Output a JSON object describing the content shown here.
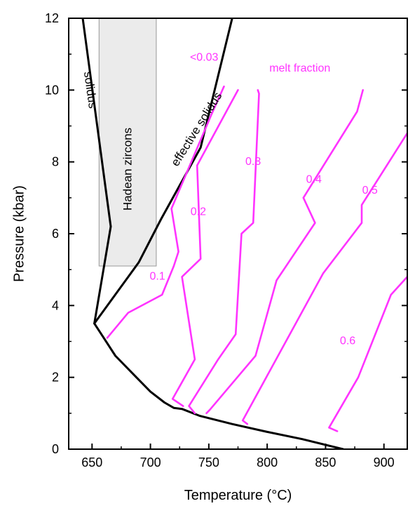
{
  "chart_data": {
    "type": "line",
    "xlabel": "Temperature (°C)",
    "ylabel": "Pressure (kbar)",
    "xlim": [
      630,
      920
    ],
    "ylim": [
      0,
      12
    ],
    "x_ticks": [
      "650",
      "700",
      "750",
      "800",
      "850",
      "900"
    ],
    "y_ticks": [
      "0",
      "2",
      "4",
      "6",
      "8",
      "10",
      "12"
    ],
    "grid": false,
    "colors": {
      "magenta": "#ff33ff",
      "black": "#000000",
      "grey_box": "#e6e6e6",
      "grey_line": "#999999"
    },
    "series": [
      {
        "name": "solidus",
        "color": "#000000",
        "points": [
          [
            642,
            12
          ],
          [
            666,
            6.2
          ],
          [
            652,
            3.5
          ],
          [
            660,
            3.1
          ],
          [
            670,
            2.6
          ],
          [
            688,
            2
          ],
          [
            700,
            1.6
          ],
          [
            712,
            1.3
          ],
          [
            720,
            1.15
          ],
          [
            727,
            1.12
          ],
          [
            742,
            0.93
          ],
          [
            770,
            0.7
          ],
          [
            800,
            0.48
          ],
          [
            830,
            0.28
          ],
          [
            865,
            0
          ]
        ]
      },
      {
        "name": "effective solidus",
        "color": "#000000",
        "points": [
          [
            652,
            3.5
          ],
          [
            690,
            5.2
          ],
          [
            709,
            6.4
          ],
          [
            743,
            8.4
          ],
          [
            770,
            12
          ]
        ]
      },
      {
        "name": "",
        "color": "#ff33ff",
        "points": [
          [
            663,
            3.1
          ],
          [
            681,
            3.8
          ],
          [
            710,
            4.3
          ],
          [
            720,
            5.1
          ],
          [
            724,
            5.5
          ],
          [
            718,
            6.7
          ],
          [
            752,
            9.3
          ],
          [
            763,
            10.1
          ]
        ]
      },
      {
        "name": "",
        "color": "#ff33ff",
        "points": [
          [
            728,
            1.2
          ],
          [
            719,
            1.4
          ],
          [
            738,
            2.5
          ],
          [
            727,
            4.8
          ],
          [
            743,
            5.3
          ],
          [
            740,
            7.9
          ],
          [
            775,
            10
          ]
        ]
      },
      {
        "name": "",
        "color": "#ff33ff",
        "points": [
          [
            738,
            1
          ],
          [
            733,
            1.2
          ],
          [
            758,
            2.5
          ],
          [
            773,
            3.2
          ],
          [
            778,
            6
          ],
          [
            788,
            6.3
          ],
          [
            793,
            9.9
          ],
          [
            792,
            10
          ]
        ]
      },
      {
        "name": "",
        "color": "#ff33ff",
        "points": [
          [
            748,
            1
          ],
          [
            751,
            1.1
          ],
          [
            790,
            2.6
          ],
          [
            808,
            4.7
          ],
          [
            841,
            6.3
          ],
          [
            831,
            7
          ],
          [
            877,
            9.4
          ],
          [
            882,
            10
          ]
        ]
      },
      {
        "name": "",
        "color": "#ff33ff",
        "points": [
          [
            783,
            0.7
          ],
          [
            779,
            0.8
          ],
          [
            848,
            4.9
          ],
          [
            881,
            6.3
          ],
          [
            881,
            6.8
          ],
          [
            920,
            8.8
          ]
        ]
      },
      {
        "name": "",
        "color": "#ff33ff",
        "points": [
          [
            860,
            0.5
          ],
          [
            853,
            0.6
          ],
          [
            878,
            2
          ],
          [
            906,
            4.3
          ],
          [
            920,
            4.8
          ]
        ]
      }
    ],
    "hadean_box": {
      "x0": 656,
      "x1": 705,
      "y0": 5.1,
      "y1": 12
    },
    "annotations": [
      {
        "text": "solidus",
        "x": 648,
        "y": 10,
        "color": "#000000",
        "rotate": 82
      },
      {
        "text": "Hadean zircons",
        "x": 681,
        "y": 7.8,
        "color": "#000000",
        "rotate": -90
      },
      {
        "text": "effective solidus",
        "x": 740,
        "y": 8.9,
        "color": "#000000",
        "rotate": -58
      },
      {
        "text": "<0.03",
        "x": 746,
        "y": 10.9,
        "color": "#ff33ff",
        "rotate": 0
      },
      {
        "text": "melt fraction",
        "x": 828,
        "y": 10.6,
        "color": "#ff33ff",
        "rotate": 0
      },
      {
        "text": "0.1",
        "x": 706,
        "y": 4.8,
        "color": "#ff33ff",
        "rotate": 0
      },
      {
        "text": "0.2",
        "x": 741,
        "y": 6.6,
        "color": "#ff33ff",
        "rotate": 0
      },
      {
        "text": "0.3",
        "x": 788,
        "y": 8.0,
        "color": "#ff33ff",
        "rotate": 0
      },
      {
        "text": "0.4",
        "x": 840,
        "y": 7.5,
        "color": "#ff33ff",
        "rotate": 0
      },
      {
        "text": "0.5",
        "x": 888,
        "y": 7.2,
        "color": "#ff33ff",
        "rotate": 0
      },
      {
        "text": "0.6",
        "x": 869,
        "y": 3.0,
        "color": "#ff33ff",
        "rotate": 0
      }
    ]
  }
}
